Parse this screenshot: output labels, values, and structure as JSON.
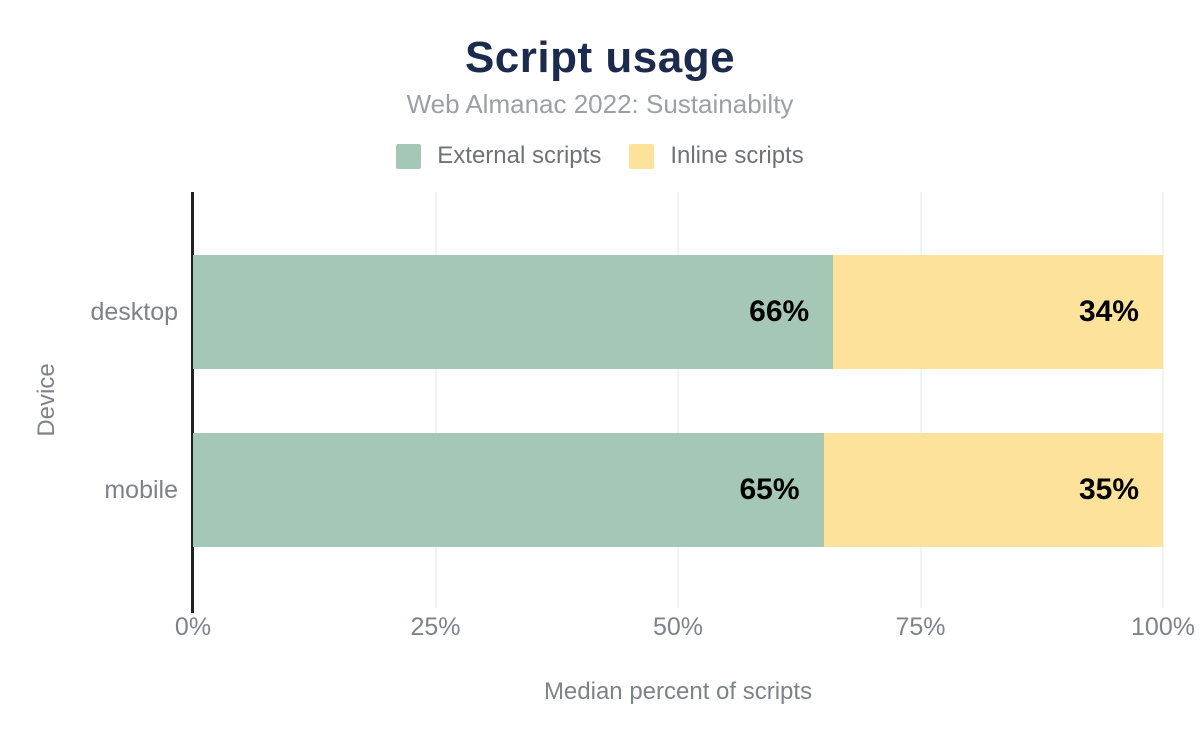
{
  "chart_data": {
    "type": "bar",
    "orientation": "horizontal",
    "stacked": true,
    "title": "Script usage",
    "subtitle": "Web Almanac 2022: Sustainabilty",
    "categories": [
      "desktop",
      "mobile"
    ],
    "series": [
      {
        "name": "External scripts",
        "color": "#a5c8b6",
        "values": [
          66,
          65
        ]
      },
      {
        "name": "Inline scripts",
        "color": "#fde29b",
        "values": [
          34,
          35
        ]
      }
    ],
    "data_labels": [
      [
        "66%",
        "34%"
      ],
      [
        "65%",
        "35%"
      ]
    ],
    "xlabel": "Median percent of scripts",
    "ylabel": "Device",
    "x_ticks": [
      "0%",
      "25%",
      "50%",
      "75%",
      "100%"
    ],
    "xlim": [
      0,
      100
    ],
    "grid": "vertical",
    "legend_position": "top-center"
  },
  "colors": {
    "background": "#ffffff",
    "title_text": "#1c2b4d",
    "subtitle_text": "#9aa0a6",
    "legend_text": "#6f7377",
    "axis_text": "#7d838a",
    "data_label": "#000000",
    "gridline": "#f1f3f4",
    "axis_line": "#202124"
  }
}
